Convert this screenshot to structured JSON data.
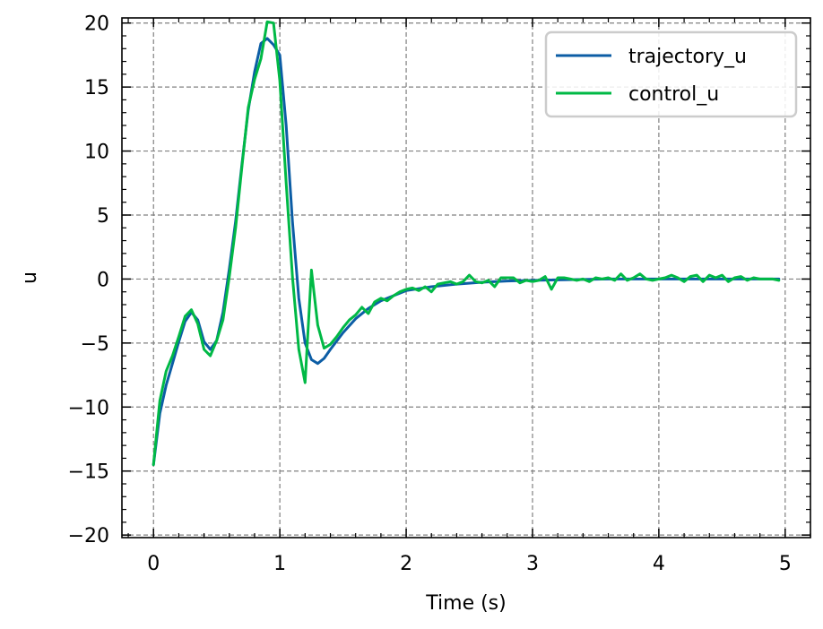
{
  "chart_data": {
    "type": "line",
    "title": "",
    "xlabel": "Time (s)",
    "ylabel": "u",
    "xlim": [
      -0.25,
      5.2
    ],
    "ylim": [
      -20.2,
      20.4
    ],
    "xticks": [
      0,
      1,
      2,
      3,
      4,
      5
    ],
    "xtick_labels": [
      "0",
      "1",
      "2",
      "3",
      "4",
      "5"
    ],
    "yticks": [
      -20,
      -15,
      -10,
      -5,
      0,
      5,
      10,
      15,
      20
    ],
    "ytick_labels": [
      "−20",
      "−15",
      "−10",
      "−5",
      "0",
      "5",
      "10",
      "15",
      "20"
    ],
    "grid": true,
    "legend_position": "top-right",
    "series": [
      {
        "name": "trajectory_u",
        "color": "#0C5DA5",
        "x": [
          0,
          0.05,
          0.1,
          0.15,
          0.2,
          0.25,
          0.3,
          0.35,
          0.4,
          0.45,
          0.5,
          0.55,
          0.6,
          0.65,
          0.7,
          0.75,
          0.8,
          0.85,
          0.9,
          0.95,
          1.0,
          1.05,
          1.1,
          1.15,
          1.2,
          1.25,
          1.3,
          1.35,
          1.4,
          1.5,
          1.6,
          1.7,
          1.8,
          1.9,
          2.0,
          2.2,
          2.4,
          2.6,
          2.8,
          3.0,
          3.3,
          3.6,
          3.9,
          4.2,
          4.5,
          4.8,
          4.95
        ],
        "y": [
          -14.5,
          -10.5,
          -8.3,
          -6.6,
          -4.9,
          -3.3,
          -2.6,
          -3.2,
          -4.9,
          -5.5,
          -4.8,
          -2.6,
          0.8,
          4.5,
          9.0,
          13.2,
          16.2,
          18.4,
          18.8,
          18.3,
          17.5,
          12.0,
          4.5,
          -1.5,
          -5.0,
          -6.3,
          -6.6,
          -6.2,
          -5.5,
          -4.2,
          -3.1,
          -2.3,
          -1.7,
          -1.3,
          -0.9,
          -0.6,
          -0.4,
          -0.25,
          -0.15,
          -0.1,
          -0.05,
          0.0,
          0.0,
          0.0,
          0.0,
          0.0,
          0.0
        ]
      },
      {
        "name": "control_u",
        "color": "#00B945",
        "x": [
          0,
          0.05,
          0.1,
          0.15,
          0.2,
          0.25,
          0.3,
          0.35,
          0.4,
          0.45,
          0.5,
          0.55,
          0.6,
          0.65,
          0.7,
          0.75,
          0.8,
          0.85,
          0.9,
          0.95,
          1.0,
          1.05,
          1.1,
          1.15,
          1.2,
          1.25,
          1.3,
          1.35,
          1.4,
          1.45,
          1.5,
          1.55,
          1.6,
          1.65,
          1.7,
          1.75,
          1.8,
          1.85,
          1.9,
          1.95,
          2.0,
          2.05,
          2.1,
          2.15,
          2.2,
          2.25,
          2.3,
          2.35,
          2.4,
          2.45,
          2.5,
          2.55,
          2.6,
          2.65,
          2.7,
          2.75,
          2.8,
          2.85,
          2.9,
          2.95,
          3.0,
          3.05,
          3.1,
          3.15,
          3.2,
          3.25,
          3.3,
          3.35,
          3.4,
          3.45,
          3.5,
          3.55,
          3.6,
          3.65,
          3.7,
          3.75,
          3.8,
          3.85,
          3.9,
          3.95,
          4.0,
          4.05,
          4.1,
          4.15,
          4.2,
          4.25,
          4.3,
          4.35,
          4.4,
          4.45,
          4.5,
          4.55,
          4.6,
          4.65,
          4.7,
          4.75,
          4.8,
          4.85,
          4.9,
          4.95
        ],
        "y": [
          -14.5,
          -9.5,
          -7.2,
          -6.0,
          -4.5,
          -2.9,
          -2.4,
          -3.5,
          -5.5,
          -6.0,
          -4.8,
          -3.2,
          0.2,
          4.0,
          8.8,
          13.4,
          15.6,
          17.2,
          20.1,
          20.0,
          15.5,
          7.5,
          0.2,
          -5.5,
          -8.1,
          0.7,
          -3.6,
          -5.4,
          -5.1,
          -4.5,
          -3.8,
          -3.2,
          -2.8,
          -2.2,
          -2.7,
          -1.8,
          -1.5,
          -1.7,
          -1.3,
          -1.0,
          -0.8,
          -0.7,
          -0.9,
          -0.6,
          -1.0,
          -0.4,
          -0.3,
          -0.2,
          -0.4,
          -0.2,
          0.3,
          -0.2,
          -0.3,
          -0.1,
          -0.6,
          0.1,
          0.1,
          0.1,
          -0.3,
          -0.1,
          -0.2,
          -0.1,
          0.2,
          -0.8,
          0.1,
          0.1,
          0.0,
          -0.1,
          0.0,
          -0.2,
          0.1,
          0.0,
          0.1,
          -0.1,
          0.4,
          -0.1,
          0.1,
          0.4,
          0.0,
          -0.1,
          0.0,
          0.1,
          0.3,
          0.1,
          -0.2,
          0.2,
          0.3,
          -0.2,
          0.3,
          0.1,
          0.3,
          -0.2,
          0.1,
          0.2,
          -0.1,
          0.1,
          0.0,
          0.0,
          0.0,
          -0.1
        ]
      }
    ]
  }
}
